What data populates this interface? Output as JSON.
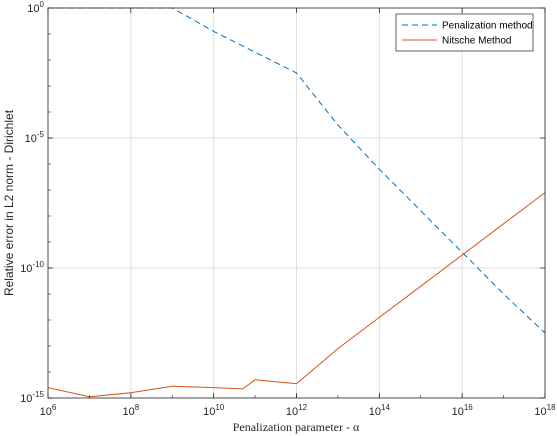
{
  "chart_data": {
    "type": "line",
    "xlabel": "Penalization parameter - α",
    "ylabel": "Relative error in L2 norm - Dirichlet",
    "xscale": "log",
    "yscale": "log",
    "xlim_exp": [
      6,
      18
    ],
    "ylim_exp": [
      -15,
      0
    ],
    "x_ticks": [
      {
        "base": "10",
        "exp": "6"
      },
      {
        "base": "10",
        "exp": "8"
      },
      {
        "base": "10",
        "exp": "10"
      },
      {
        "base": "10",
        "exp": "12"
      },
      {
        "base": "10",
        "exp": "14"
      },
      {
        "base": "10",
        "exp": "16"
      },
      {
        "base": "10",
        "exp": "18"
      }
    ],
    "y_ticks": [
      {
        "base": "10",
        "exp": "0"
      },
      {
        "base": "10",
        "exp": "-5"
      },
      {
        "base": "10",
        "exp": "-10"
      },
      {
        "base": "10",
        "exp": "-15"
      }
    ],
    "grid": true,
    "legend_position": "top-right",
    "series": [
      {
        "name": "Penalization method",
        "color": "#0072BD",
        "style": "dashed",
        "x_exp": [
          6,
          7,
          8,
          9,
          10,
          11,
          12,
          13,
          14,
          15,
          16,
          17,
          18
        ],
        "y_exp": [
          0,
          0,
          0,
          0,
          -0.9,
          -1.7,
          -2.5,
          -4.5,
          -6.2,
          -7.8,
          -9.4,
          -11.0,
          -12.5
        ]
      },
      {
        "name": "Nitsche Method",
        "color": "#D95319",
        "style": "solid",
        "x_exp": [
          6,
          7,
          8,
          9,
          10,
          10.7,
          11,
          12,
          13,
          14,
          15,
          16,
          17,
          18
        ],
        "y_exp": [
          -14.6,
          -14.95,
          -14.8,
          -14.55,
          -14.6,
          -14.65,
          -14.3,
          -14.45,
          -13.1,
          -11.9,
          -10.7,
          -9.5,
          -8.3,
          -7.1
        ]
      }
    ]
  }
}
